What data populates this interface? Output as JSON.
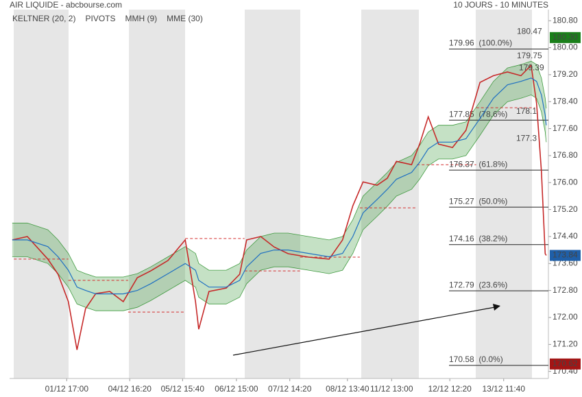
{
  "chart_data": {
    "type": "line",
    "title": "AIR LIQUIDE - abcbourse.com",
    "subtitle": "10 JOURS - 10 MINUTES",
    "x": [
      0.5,
      3.3,
      7.1,
      9.0,
      10.9,
      12.5,
      14.1,
      16.0,
      18.6,
      21.1,
      23.7,
      26.2,
      29.4,
      32.6,
      34.5,
      35.1,
      37.0,
      40.2,
      42.7,
      44.0,
      46.6,
      49.1,
      51.7,
      55.5,
      59.3,
      61.8,
      63.7,
      65.6,
      68.2,
      70.1,
      71.8,
      74.6,
      76.1,
      77.7,
      79.6,
      82.2,
      84.7,
      87.3,
      89.8,
      92.4,
      94.9,
      96.8,
      97.8,
      98.7,
      99.4,
      99.6
    ],
    "xlim": [
      0,
      100
    ],
    "xticks": [
      {
        "value": 10.6,
        "label": "01/12 17:00"
      },
      {
        "value": 22.3,
        "label": "04/12 16:20"
      },
      {
        "value": 32.1,
        "label": "05/12 15:40"
      },
      {
        "value": 42.1,
        "label": "06/12 15:00"
      },
      {
        "value": 52.0,
        "label": "07/12 14:20"
      },
      {
        "value": 62.7,
        "label": "08/12 13:40"
      },
      {
        "value": 70.9,
        "label": "11/12 13:00"
      },
      {
        "value": 81.7,
        "label": "12/12 12:20"
      },
      {
        "value": 91.7,
        "label": "13/12 11:40"
      }
    ],
    "ylim": [
      170.19,
      181.13
    ],
    "yticks": [
      {
        "value": 180.8,
        "label": "180.80"
      },
      {
        "value": 180.0,
        "label": "180.00"
      },
      {
        "value": 179.2,
        "label": "179.20"
      },
      {
        "value": 178.4,
        "label": "178.40"
      },
      {
        "value": 177.6,
        "label": "177.60"
      },
      {
        "value": 176.8,
        "label": "176.80"
      },
      {
        "value": 176.0,
        "label": "176.00"
      },
      {
        "value": 175.2,
        "label": "175.20"
      },
      {
        "value": 174.4,
        "label": "174.40"
      },
      {
        "value": 173.6,
        "label": "173.60"
      },
      {
        "value": 172.8,
        "label": "172.80"
      },
      {
        "value": 172.0,
        "label": "172.00"
      },
      {
        "value": 171.2,
        "label": "171.20"
      },
      {
        "value": 170.4,
        "label": "170.40"
      }
    ],
    "keltner": {
      "name": "KELTNER (20, 2)",
      "color": "#3f9a3f",
      "upper": [
        174.8,
        174.8,
        174.6,
        174.3,
        173.9,
        173.4,
        173.3,
        173.2,
        173.2,
        173.2,
        173.3,
        173.5,
        173.8,
        174.1,
        173.9,
        173.6,
        173.4,
        173.4,
        173.6,
        174.0,
        174.4,
        174.5,
        174.5,
        174.4,
        174.3,
        174.4,
        174.9,
        175.6,
        176.0,
        176.3,
        176.6,
        176.8,
        177.1,
        177.5,
        177.7,
        177.7,
        177.8,
        178.4,
        179.0,
        179.4,
        179.5,
        179.6,
        179.5,
        179.1,
        178.5,
        178.2
      ],
      "lower": [
        173.8,
        173.8,
        173.6,
        173.3,
        172.9,
        172.4,
        172.3,
        172.2,
        172.2,
        172.2,
        172.3,
        172.5,
        172.8,
        173.1,
        172.9,
        172.6,
        172.4,
        172.4,
        172.6,
        173.0,
        173.4,
        173.5,
        173.5,
        173.4,
        173.3,
        173.4,
        173.9,
        174.6,
        175.0,
        175.3,
        175.6,
        175.8,
        176.1,
        176.5,
        176.7,
        176.7,
        176.8,
        177.4,
        178.0,
        178.4,
        178.5,
        178.6,
        178.5,
        178.1,
        177.5,
        177.2
      ]
    },
    "pivots": {
      "name": "PIVOTS",
      "color": "#d32f2f",
      "levels": [
        {
          "value": 173.73,
          "from": 0.8,
          "to": 10.9
        },
        {
          "value": 173.1,
          "from": 10.9,
          "to": 22.0
        },
        {
          "value": 172.16,
          "from": 22.0,
          "to": 32.6
        },
        {
          "value": 174.34,
          "from": 32.6,
          "to": 43.6
        },
        {
          "value": 173.38,
          "from": 43.6,
          "to": 53.9
        },
        {
          "value": 173.79,
          "from": 53.9,
          "to": 65.0
        },
        {
          "value": 175.25,
          "from": 65.0,
          "to": 75.6
        },
        {
          "value": 176.53,
          "from": 75.6,
          "to": 86.6
        },
        {
          "value": 178.22,
          "from": 86.6,
          "to": 97.5
        }
      ]
    },
    "series": [
      {
        "name": "MMH (9)",
        "color": "#c62828",
        "values": [
          174.3,
          174.4,
          173.73,
          173.28,
          172.47,
          171.04,
          172.26,
          172.71,
          172.77,
          172.47,
          173.18,
          173.38,
          173.69,
          174.3,
          172.47,
          171.65,
          172.77,
          172.87,
          173.28,
          174.3,
          174.4,
          174.09,
          173.89,
          173.79,
          173.73,
          174.3,
          175.31,
          176.02,
          175.92,
          176.13,
          176.63,
          176.53,
          177.14,
          177.95,
          177.14,
          177.04,
          177.55,
          178.97,
          179.17,
          179.28,
          179.17,
          179.48,
          178.36,
          176.33,
          173.89,
          173.84
        ]
      },
      {
        "name": "MME (30)",
        "color": "#1e6fc2",
        "values": [
          174.3,
          174.3,
          174.1,
          173.8,
          173.4,
          172.9,
          172.8,
          172.7,
          172.7,
          172.7,
          172.8,
          173.0,
          173.3,
          173.6,
          173.4,
          173.1,
          172.9,
          172.9,
          173.1,
          173.5,
          173.9,
          174.0,
          174.0,
          173.9,
          173.8,
          173.9,
          174.4,
          175.1,
          175.5,
          175.8,
          176.1,
          176.3,
          176.6,
          177.0,
          177.2,
          177.2,
          177.3,
          177.9,
          178.5,
          178.9,
          179.0,
          179.1,
          179.0,
          178.6,
          178.0,
          177.7
        ]
      }
    ],
    "fibonacci": [
      {
        "value": 179.96,
        "label": "179.96  (100.0%)"
      },
      {
        "value": 177.85,
        "label": "177.85  (78.6%)"
      },
      {
        "value": 176.37,
        "label": "176.37  (61.8%)"
      },
      {
        "value": 175.27,
        "label": "175.27  (50.0%)"
      },
      {
        "value": 174.16,
        "label": "174.16  (38.2%)"
      },
      {
        "value": 172.79,
        "label": "172.79  (23.6%)"
      },
      {
        "value": 170.58,
        "label": "170.58  (0.0%)"
      }
    ],
    "annotations": [
      {
        "value": 180.47,
        "label": "180.47",
        "color": "#2e8b2e"
      },
      {
        "value": 179.75,
        "label": "179.75",
        "color": "#2e8b2e"
      },
      {
        "value": 179.39,
        "label": "179.39",
        "color": "#333333"
      },
      {
        "value": 178.1,
        "label": "178.1",
        "color": "#d32f2f"
      },
      {
        "value": 177.3,
        "label": "177.3",
        "color": "#d32f2f"
      }
    ],
    "axis_markers": [
      {
        "value": 180.3,
        "label": "180.30",
        "color": "#1a7f1a"
      },
      {
        "value": 173.84,
        "label": "173.84",
        "color": "#1f5fa8"
      },
      {
        "value": 170.62,
        "label": "170.62",
        "color": "#a31515"
      }
    ]
  }
}
